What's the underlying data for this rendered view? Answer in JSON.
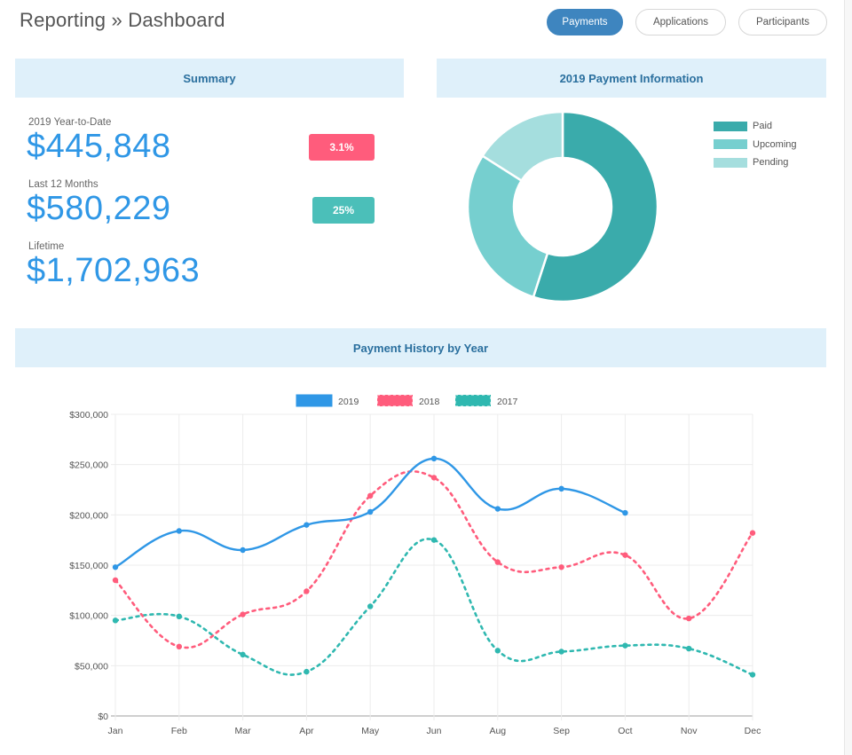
{
  "header": {
    "title": "Reporting » Dashboard",
    "tabs": [
      {
        "label": "Payments",
        "active": true
      },
      {
        "label": "Applications",
        "active": false
      },
      {
        "label": "Participants",
        "active": false
      }
    ]
  },
  "summary": {
    "heading": "Summary",
    "items": [
      {
        "label": "2019 Year-to-Date",
        "value": "$445,848",
        "badge": "3.1%",
        "badge_color": "#ff5c7c"
      },
      {
        "label": "Last 12 Months",
        "value": "$580,229",
        "badge": "25%",
        "badge_color": "#4bbfb9"
      },
      {
        "label": "Lifetime",
        "value": "$1,702,963"
      }
    ]
  },
  "payment_info": {
    "heading": "2019 Payment Information"
  },
  "history": {
    "heading": "Payment History by Year"
  },
  "colors": {
    "accent": "#3e85bf",
    "panel_bg": "#dff0fa",
    "value_blue": "#2f97e6"
  },
  "chart_data": [
    {
      "type": "pie",
      "variant": "doughnut",
      "title": "2019 Payment Information",
      "legend_position": "right",
      "labels": [
        "Paid",
        "Upcoming",
        "Pending"
      ],
      "values": [
        55,
        29,
        16
      ],
      "colors": [
        "#3aabab",
        "#76cfcf",
        "#a5dede"
      ]
    },
    {
      "type": "line",
      "title": "Payment History by Year",
      "legend_position": "top",
      "categories": [
        "Jan",
        "Feb",
        "Mar",
        "Apr",
        "May",
        "Jun",
        "Aug",
        "Sep",
        "Oct",
        "Nov",
        "Dec"
      ],
      "y_ticks": [
        "$0",
        "$50,000",
        "$100,000",
        "$150,000",
        "$200,000",
        "$250,000",
        "$300,000"
      ],
      "ylim": [
        0,
        300000
      ],
      "grid": true,
      "series": [
        {
          "name": "2019",
          "color": "#2f97e6",
          "dashed": false,
          "values": [
            148000,
            184000,
            165000,
            190000,
            203000,
            256000,
            206000,
            226000,
            202000,
            null,
            null
          ]
        },
        {
          "name": "2018",
          "color": "#ff5c7c",
          "dashed": true,
          "values": [
            135000,
            69000,
            101000,
            124000,
            219000,
            237000,
            153000,
            148000,
            160000,
            97000,
            182000
          ]
        },
        {
          "name": "2017",
          "color": "#2fb8b0",
          "dashed": true,
          "values": [
            95000,
            99000,
            61000,
            44000,
            109000,
            175000,
            65000,
            64000,
            70000,
            67000,
            41000
          ]
        }
      ]
    }
  ]
}
